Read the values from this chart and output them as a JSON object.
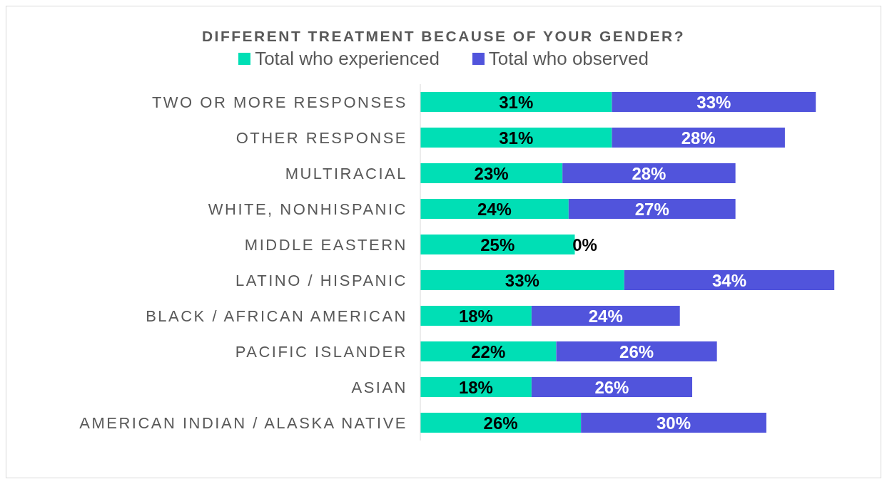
{
  "chart_data": {
    "type": "bar",
    "orientation": "horizontal",
    "stacked": true,
    "title": "DIFFERENT TREATMENT BECAUSE OF YOUR GENDER?",
    "legend": "top",
    "categories": [
      "TWO OR MORE RESPONSES",
      "OTHER RESPONSE",
      "MULTIRACIAL",
      "WHITE, NONHISPANIC",
      "MIDDLE EASTERN",
      "LATINO / HISPANIC",
      "BLACK / AFRICAN AMERICAN",
      "PACIFIC ISLANDER",
      "ASIAN",
      "AMERICAN INDIAN / ALASKA NATIVE"
    ],
    "series": [
      {
        "name": "Total who experienced",
        "color": "#00dfb5",
        "values": [
          31,
          31,
          23,
          24,
          25,
          33,
          18,
          22,
          18,
          26
        ],
        "value_labels": [
          "31%",
          "31%",
          "23%",
          "24%",
          "25%",
          "33%",
          "18%",
          "22%",
          "18%",
          "26%"
        ]
      },
      {
        "name": "Total who observed",
        "color": "#5154dc",
        "values": [
          33,
          28,
          28,
          27,
          0,
          34,
          24,
          26,
          26,
          30
        ],
        "value_labels": [
          "33%",
          "28%",
          "28%",
          "27%",
          "0%",
          "34%",
          "24%",
          "26%",
          "26%",
          "30%"
        ]
      }
    ]
  }
}
